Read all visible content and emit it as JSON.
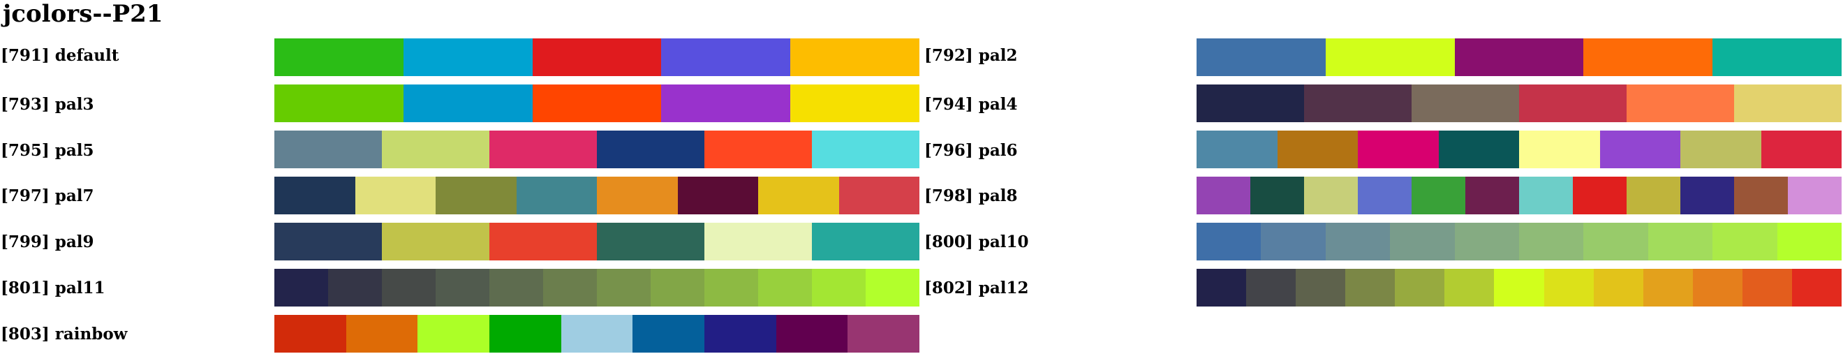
{
  "title": "jcolors--P21",
  "palettes": [
    {
      "label": "[791] default",
      "colors": [
        "#2BBD16",
        "#00A3D1",
        "#E01B1E",
        "#5850DF",
        "#FDBD00"
      ]
    },
    {
      "label": "[792] pal2",
      "colors": [
        "#3F71A8",
        "#D1FF1A",
        "#890F6E",
        "#FE6B07",
        "#0CB29B"
      ]
    },
    {
      "label": "[793] pal3",
      "colors": [
        "#66CC00",
        "#009ACD",
        "#FF4500",
        "#9932CC",
        "#F6E000"
      ]
    },
    {
      "label": "[794] pal4",
      "colors": [
        "#212548",
        "#523249",
        "#7A6B5C",
        "#C53349",
        "#FE7843",
        "#E3D26D"
      ]
    },
    {
      "label": "[795] pal5",
      "colors": [
        "#628192",
        "#C6DA6D",
        "#DF2A67",
        "#17397A",
        "#FF4721",
        "#56DDE0"
      ]
    },
    {
      "label": "[796] pal6",
      "colors": [
        "#4F88A6",
        "#B27313",
        "#D8006F",
        "#0A5657",
        "#FCFD91",
        "#9246D1",
        "#BDBF61",
        "#DD253E"
      ]
    },
    {
      "label": "[797] pal7",
      "colors": [
        "#1F3656",
        "#E1E07C",
        "#808A39",
        "#418690",
        "#E68D1E",
        "#5A0C35",
        "#E5C21A",
        "#D5404A"
      ]
    },
    {
      "label": "[798] pal8",
      "colors": [
        "#9444B3",
        "#184D42",
        "#C7CF79",
        "#5F6FCD",
        "#39A138",
        "#6D1F4E",
        "#6DCEC8",
        "#E01F1E",
        "#BFB43C",
        "#2F2780",
        "#9A5537",
        "#D38FDA"
      ]
    },
    {
      "label": "[799] pal9",
      "colors": [
        "#283B5B",
        "#C1C34A",
        "#E8402C",
        "#2D6758",
        "#E8F4B8",
        "#25A89C"
      ]
    },
    {
      "label": "[800] pal10",
      "colors": [
        "#3F6FA8",
        "#587FA2",
        "#6B8E96",
        "#799C8B",
        "#85AB82",
        "#8FBB77",
        "#98CB6A",
        "#A2DC5C",
        "#ABEA48",
        "#B4FF2C"
      ]
    },
    {
      "label": "[801] pal11",
      "colors": [
        "#23244B",
        "#353647",
        "#464A48",
        "#515B4E",
        "#5E6C4F",
        "#6B7E4D",
        "#77924B",
        "#82A647",
        "#8DBA43",
        "#98D03D",
        "#A3E633",
        "#B2FF2C"
      ]
    },
    {
      "label": "[802] pal12",
      "colors": [
        "#22224A",
        "#434449",
        "#5E624C",
        "#7B8746",
        "#97AA3F",
        "#B2CC31",
        "#D1FF1C",
        "#DCE119",
        "#E2C31A",
        "#E3A11C",
        "#E57F1C",
        "#E35D1D",
        "#E22A1E"
      ]
    },
    {
      "label": "[803] rainbow",
      "colors": [
        "#D22B0A",
        "#DE6B06",
        "#ACFF27",
        "#00AA00",
        "#9FCDE2",
        "#04609B",
        "#221E85",
        "#61004F",
        "#983571"
      ]
    }
  ]
}
